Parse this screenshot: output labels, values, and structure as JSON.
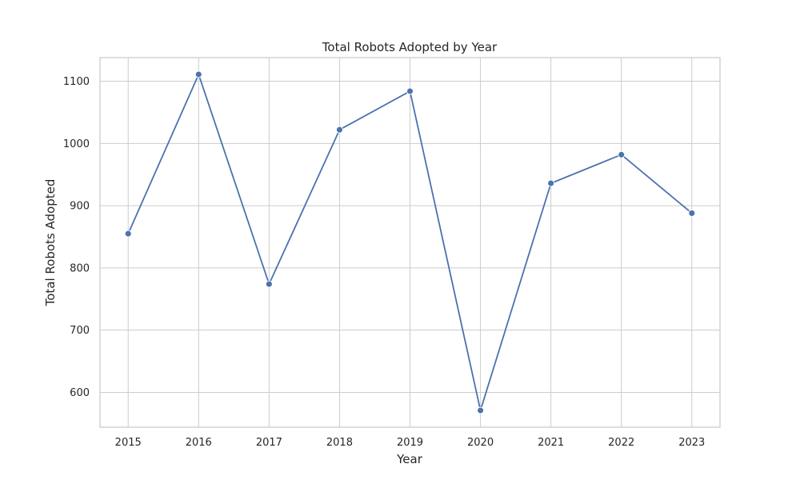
{
  "chart_data": {
    "type": "line",
    "title": "Total Robots Adopted by Year",
    "xlabel": "Year",
    "ylabel": "Total Robots Adopted",
    "x": [
      2015,
      2016,
      2017,
      2018,
      2019,
      2020,
      2021,
      2022,
      2023
    ],
    "series": [
      {
        "values": [
          855,
          1111,
          774,
          1022,
          1084,
          571,
          936,
          982,
          888
        ],
        "color": "#4c72b0"
      }
    ],
    "xlim": [
      2014.6,
      2023.4
    ],
    "ylim": [
      544,
      1138
    ],
    "xticks": [
      2015,
      2016,
      2017,
      2018,
      2019,
      2020,
      2021,
      2022,
      2023
    ],
    "yticks": [
      600,
      700,
      800,
      900,
      1000,
      1100
    ],
    "grid": true,
    "legend": "none",
    "marker": "circle"
  }
}
